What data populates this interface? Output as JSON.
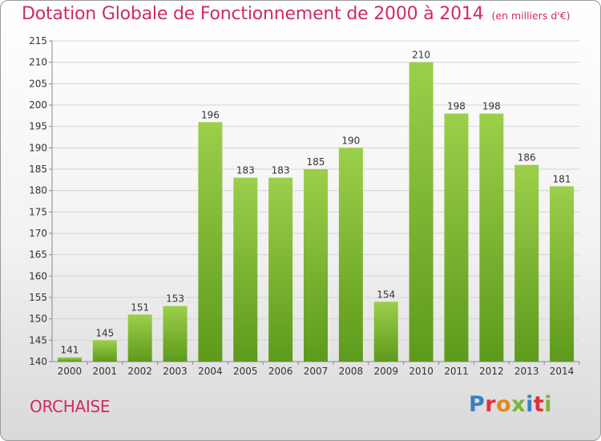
{
  "title": "Dotation Globale de Fonctionnement de 2000 à 2014",
  "unit_note": "(en milliers d'€)",
  "commune": "ORCHAISE",
  "logo": {
    "text": "Proxiti",
    "letter_colors": [
      "#3a7fc4",
      "#e0303a",
      "#e08a1c",
      "#7ab534",
      "#3a7fc4",
      "#e0303a",
      "#7ab534"
    ]
  },
  "colors": {
    "bar_top": "#9ccf4a",
    "bar_bottom": "#5d9a1c",
    "title": "#d12a60"
  },
  "chart_data": {
    "type": "bar",
    "categories": [
      "2000",
      "2001",
      "2002",
      "2003",
      "2004",
      "2005",
      "2006",
      "2007",
      "2008",
      "2009",
      "2010",
      "2011",
      "2012",
      "2013",
      "2014"
    ],
    "values": [
      141,
      145,
      151,
      153,
      196,
      183,
      183,
      185,
      190,
      154,
      210,
      198,
      198,
      186,
      181
    ],
    "ylim": [
      140,
      215
    ],
    "yticks": [
      140,
      145,
      150,
      155,
      160,
      165,
      170,
      175,
      180,
      185,
      190,
      195,
      200,
      205,
      210,
      215
    ],
    "grid": "horizontal"
  }
}
